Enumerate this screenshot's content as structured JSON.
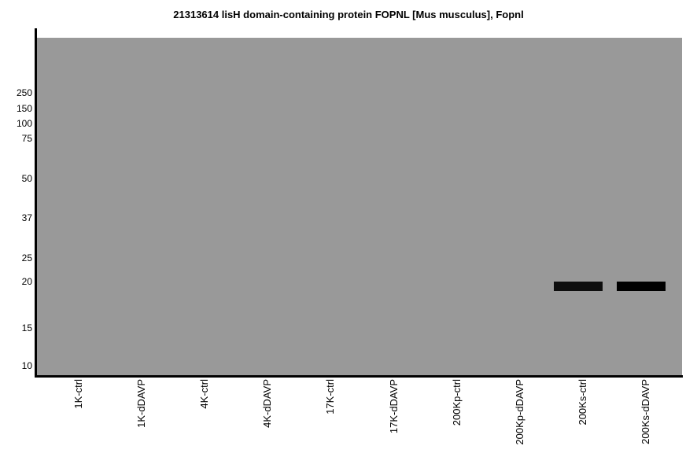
{
  "chart_data": {
    "type": "heatmap",
    "chart_kind": "western-blot-gel",
    "title": "21313614 lisH domain-containing protein FOPNL [Mus musculus], Fopnl",
    "xlabel": "",
    "ylabel": "",
    "x_tick_labels": [
      "1K-ctrl",
      "1K-dDAVP",
      "4K-ctrl",
      "4K-dDAVP",
      "17K-ctrl",
      "17K-dDAVP",
      "200Kp-ctrl",
      "200Kp-dDAVP",
      "200Ks-ctrl",
      "200Ks-dDAVP"
    ],
    "y_tick_labels": [
      "250",
      "150",
      "100",
      "75",
      "50",
      "37",
      "25",
      "20",
      "15",
      "10"
    ],
    "y_axis_meaning": "molecular weight markers (kDa), high at top",
    "grid": false,
    "legend": false,
    "colors": {
      "plot_background": "#999999",
      "axis": "#000000",
      "text": "#000000",
      "page_background": "#ffffff"
    },
    "bands": [
      {
        "lane": "200Ks-ctrl",
        "lane_index": 8,
        "kda": 19.4,
        "intensity_color": "#0e0e0e"
      },
      {
        "lane": "200Ks-dDAVP",
        "lane_index": 9,
        "kda": 19.4,
        "intensity_color": "#000000"
      }
    ]
  }
}
